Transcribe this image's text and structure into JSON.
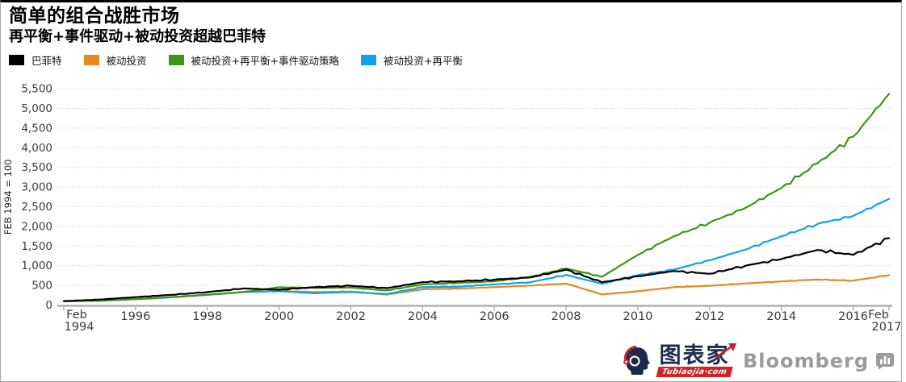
{
  "header": {
    "title": "简单的组合战胜市场",
    "subtitle": "再平衡+事件驱动+被动投资超越巴菲特"
  },
  "footer": {
    "brand": "图表家",
    "brand_domain": "Tubiaojia·com",
    "source": "Bloomberg"
  },
  "chart_data": {
    "type": "line",
    "title": "简单的组合战胜市场",
    "subtitle": "再平衡+事件驱动+被动投资超越巴菲特",
    "ylabel": "FEB 1994 = 100",
    "ylim": [
      0,
      5500
    ],
    "ytick_step": 500,
    "grid": "horizontal-dotted",
    "legend_position": "top-left",
    "x": [
      1994,
      1995,
      1996,
      1997,
      1998,
      1999,
      2000,
      2001,
      2002,
      2003,
      2004,
      2005,
      2006,
      2007,
      2008,
      2009,
      2010,
      2011,
      2012,
      2013,
      2014,
      2015,
      2016,
      2017
    ],
    "x_ticks": [
      {
        "year": 1994,
        "label": "Feb 1994"
      },
      {
        "year": 1996,
        "label": "1996"
      },
      {
        "year": 1998,
        "label": "1998"
      },
      {
        "year": 2000,
        "label": "2000"
      },
      {
        "year": 2002,
        "label": "2002"
      },
      {
        "year": 2004,
        "label": "2004"
      },
      {
        "year": 2006,
        "label": "2006"
      },
      {
        "year": 2008,
        "label": "2008"
      },
      {
        "year": 2010,
        "label": "2010"
      },
      {
        "year": 2012,
        "label": "2012"
      },
      {
        "year": 2014,
        "label": "2014"
      },
      {
        "year": 2016,
        "label": "2016"
      },
      {
        "year": 2017,
        "label": "Feb 2017"
      }
    ],
    "series": [
      {
        "name": "巴菲特",
        "color": "#000000",
        "values": [
          100,
          140,
          200,
          260,
          330,
          420,
          390,
          455,
          490,
          430,
          580,
          605,
          645,
          700,
          900,
          580,
          730,
          865,
          795,
          1000,
          1170,
          1400,
          1275,
          1700
        ]
      },
      {
        "name": "被动投资",
        "color": "#E8871E",
        "values": [
          100,
          110,
          150,
          200,
          265,
          330,
          360,
          330,
          345,
          265,
          400,
          420,
          455,
          495,
          545,
          270,
          350,
          455,
          490,
          550,
          600,
          650,
          620,
          760
        ]
      },
      {
        "name": "被动投资+再平衡+事件驱动策略",
        "color": "#3C9614",
        "values": [
          100,
          110,
          150,
          200,
          262,
          330,
          450,
          435,
          445,
          370,
          525,
          560,
          605,
          715,
          930,
          720,
          1275,
          1750,
          2095,
          2470,
          2980,
          3600,
          4280,
          5370
        ]
      },
      {
        "name": "被动投资+再平衡",
        "color": "#0FA2EC",
        "values": [
          100,
          108,
          148,
          198,
          260,
          330,
          350,
          300,
          330,
          280,
          455,
          470,
          525,
          580,
          765,
          540,
          760,
          900,
          1140,
          1410,
          1750,
          2060,
          2265,
          2700
        ]
      }
    ]
  }
}
